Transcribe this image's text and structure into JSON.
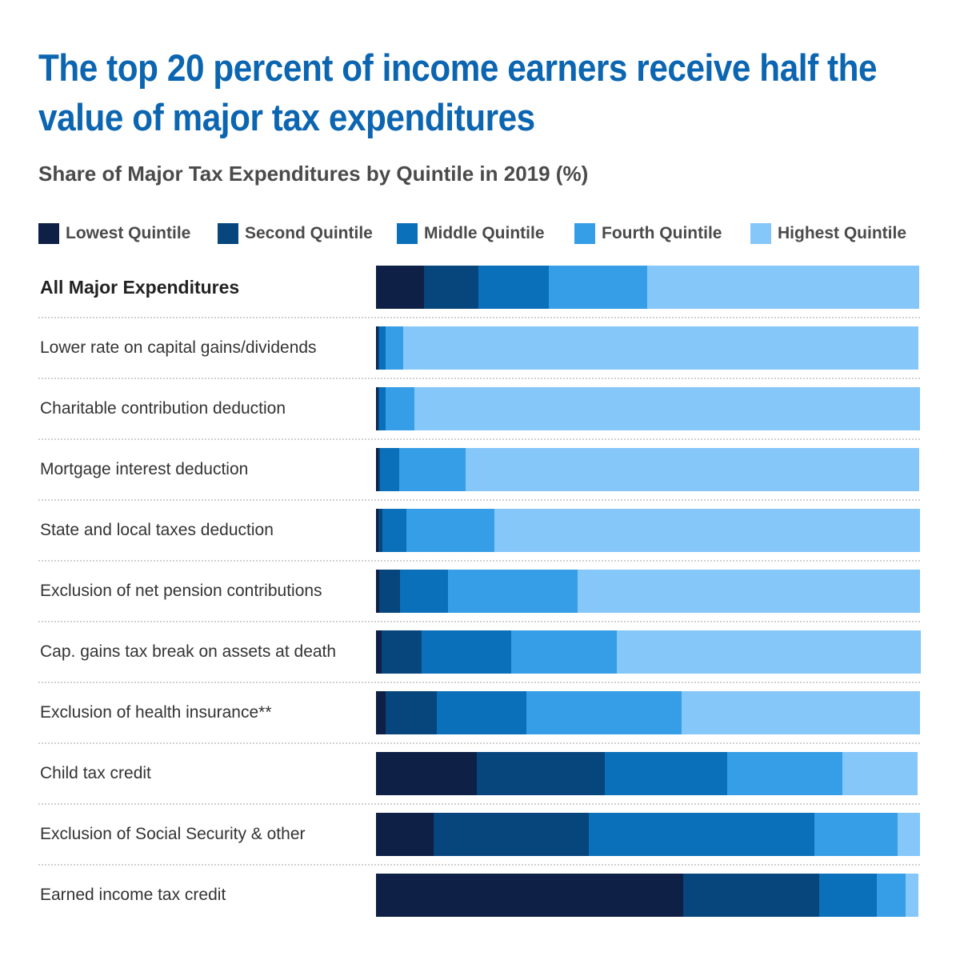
{
  "title": "The top 20 percent of income earners receive half the value of major tax expenditures",
  "subtitle": "Share of Major Tax Expenditures by Quintile in 2019 (%)",
  "chart_data": {
    "type": "bar",
    "orientation": "horizontal",
    "stacked": true,
    "title": "The top 20 percent of income earners receive half the value of major tax expenditures",
    "subtitle": "Share of Major Tax Expenditures by Quintile in 2019 (%)",
    "xlim": [
      0,
      100
    ],
    "legend_position": "top",
    "categories": [
      "All Major Expenditures",
      "Lower rate on capital gains/dividends",
      "Charitable contribution deduction",
      "Mortgage interest deduction",
      "State and local taxes deduction",
      "Exclusion of net pension contributions",
      "Cap. gains tax break on assets at death",
      "Exclusion of health insurance**",
      "Child tax credit",
      "Exclusion of Social Security & other",
      "Earned income tax credit"
    ],
    "series": [
      {
        "name": "Lowest Quintile",
        "color": "#0e2046",
        "values": [
          8.8,
          0.3,
          0.3,
          0.4,
          0.4,
          0.6,
          1.0,
          1.8,
          18.5,
          10.6,
          56.5
        ]
      },
      {
        "name": "Second Quintile",
        "color": "#07457d",
        "values": [
          10.0,
          0.3,
          0.3,
          0.4,
          0.8,
          3.8,
          7.4,
          9.4,
          23.5,
          28.5,
          25.0
        ]
      },
      {
        "name": "Middle Quintile",
        "color": "#0a70b9",
        "values": [
          12.9,
          1.2,
          1.2,
          3.5,
          4.4,
          8.8,
          16.5,
          16.5,
          22.6,
          41.5,
          10.6
        ]
      },
      {
        "name": "Fourth Quintile",
        "color": "#369ee6",
        "values": [
          18.2,
          3.2,
          5.3,
          12.1,
          16.2,
          23.8,
          19.4,
          28.5,
          21.2,
          15.3,
          5.3
        ]
      },
      {
        "name": "Highest Quintile",
        "color": "#86c7fa",
        "values": [
          50.0,
          94.7,
          92.9,
          83.5,
          78.2,
          63.0,
          55.9,
          43.8,
          13.8,
          4.1,
          2.3
        ]
      }
    ]
  }
}
